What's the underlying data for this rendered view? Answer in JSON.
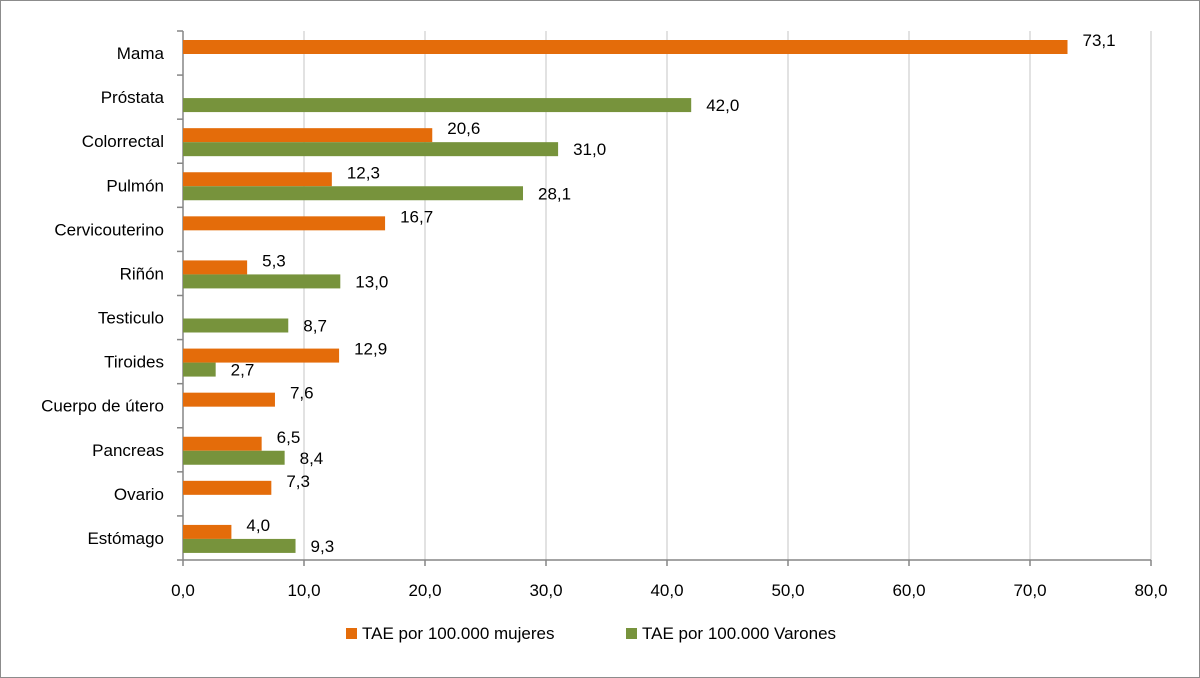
{
  "chart_data": {
    "type": "bar",
    "orientation": "horizontal",
    "categories": [
      "Mama",
      "Próstata",
      "Colorrectal",
      "Pulmón",
      "Cervicouterino",
      "Riñón",
      "Testiculo",
      "Tiroides",
      "Cuerpo de útero",
      "Pancreas",
      "Ovario",
      "Estómago"
    ],
    "series": [
      {
        "name": "TAE por 100.000 mujeres",
        "color": "#E46C0A",
        "values": [
          73.1,
          null,
          20.6,
          12.3,
          16.7,
          5.3,
          null,
          12.9,
          7.6,
          6.5,
          7.3,
          4.0
        ],
        "labels": [
          "73,1",
          "",
          "20,6",
          "12,3",
          "16,7",
          "5,3",
          "",
          "12,9",
          "7,6",
          "6,5",
          "7,3",
          "4,0"
        ]
      },
      {
        "name": "TAE por 100.000 Varones",
        "color": "#77933C",
        "values": [
          null,
          42.0,
          31.0,
          28.1,
          null,
          13.0,
          8.7,
          2.7,
          null,
          8.4,
          null,
          9.3
        ],
        "labels": [
          "",
          "42,0",
          "31,0",
          "28,1",
          "",
          "13,0",
          "8,7",
          "2,7",
          "",
          "8,4",
          "",
          "9,3"
        ]
      }
    ],
    "xlim": [
      0,
      80
    ],
    "xticks": [
      "0,0",
      "10,0",
      "20,0",
      "30,0",
      "40,0",
      "50,0",
      "60,0",
      "70,0",
      "80,0"
    ],
    "grid": "vertical",
    "legend_position": "bottom"
  }
}
